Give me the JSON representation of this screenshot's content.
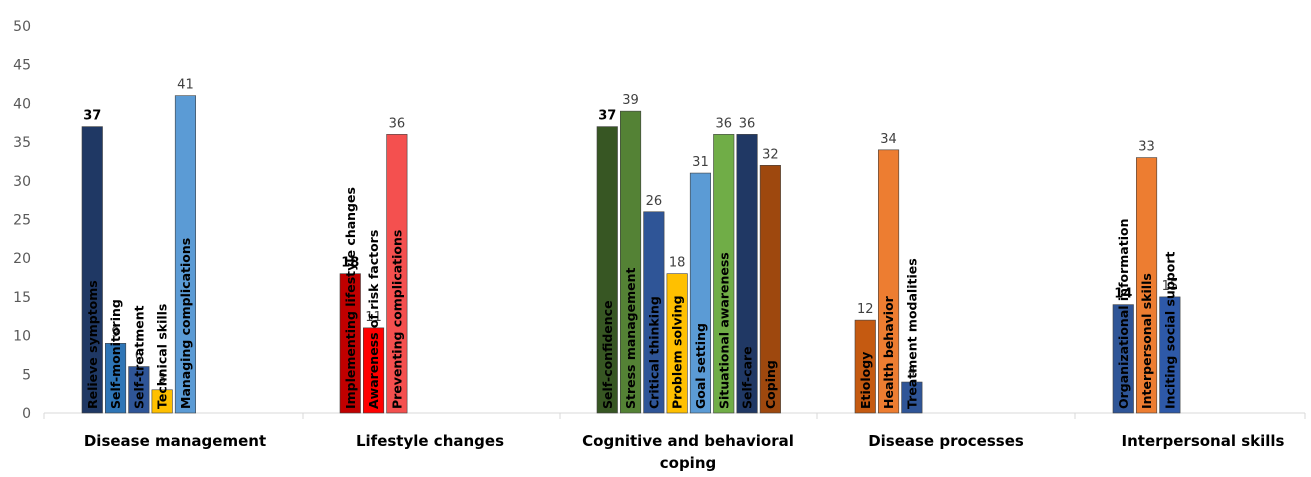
{
  "chart_data": {
    "type": "bar",
    "ylim": [
      0,
      50
    ],
    "yticks": [
      0,
      5,
      10,
      15,
      20,
      25,
      30,
      35,
      40,
      45,
      50
    ],
    "grid": false,
    "groups": [
      {
        "name": "Disease management",
        "bars": [
          {
            "label": "Relieve symptoms",
            "value": 37,
            "color": "#1f3864",
            "bold_value": true
          },
          {
            "label": "Self-monitoring",
            "value": 9,
            "color": "#2e75b6",
            "bold_value": false
          },
          {
            "label": "Self-treatment",
            "value": 6,
            "color": "#2f5597",
            "bold_value": false
          },
          {
            "label": "Technical skills",
            "value": 3,
            "color": "#ffc000",
            "bold_value": false
          },
          {
            "label": "Managing complications",
            "value": 41,
            "color": "#5b9bd5",
            "bold_value": false
          }
        ]
      },
      {
        "name": "Lifestyle changes",
        "bars": [
          {
            "label": "Implementing lifestyle changes",
            "value": 18,
            "color": "#c00000",
            "bold_value": true
          },
          {
            "label": "Awareness of risk factors",
            "value": 11,
            "color": "#ff0000",
            "bold_value": false
          },
          {
            "label": "Preventing complications",
            "value": 36,
            "color": "#f4504f",
            "bold_value": false
          }
        ]
      },
      {
        "name": "Cognitive and behavioral coping",
        "bars": [
          {
            "label": "Self-confidence",
            "value": 37,
            "color": "#375623",
            "bold_value": true
          },
          {
            "label": "Stress management",
            "value": 39,
            "color": "#548235",
            "bold_value": false
          },
          {
            "label": "Critical thinking",
            "value": 26,
            "color": "#2f5597",
            "bold_value": false
          },
          {
            "label": "Problem solving",
            "value": 18,
            "color": "#ffc000",
            "bold_value": false
          },
          {
            "label": "Goal setting",
            "value": 31,
            "color": "#5b9bd5",
            "bold_value": false
          },
          {
            "label": "Situational awareness",
            "value": 36,
            "color": "#70ad47",
            "bold_value": false
          },
          {
            "label": "Self-care",
            "value": 36,
            "color": "#203864",
            "bold_value": false
          },
          {
            "label": "Coping",
            "value": 32,
            "color": "#9e480e",
            "bold_value": false
          }
        ]
      },
      {
        "name": "Disease processes",
        "bars": [
          {
            "label": "Etiology",
            "value": 12,
            "color": "#c55a11",
            "bold_value": false
          },
          {
            "label": "Health behavior",
            "value": 34,
            "color": "#ed7d31",
            "bold_value": false
          },
          {
            "label": "Treatment modalities",
            "value": 4,
            "color": "#2f5597",
            "bold_value": false
          }
        ]
      },
      {
        "name": "Interpersonal skills",
        "bars": [
          {
            "label": "Organizational information",
            "value": 14,
            "color": "#2f5597",
            "bold_value": true
          },
          {
            "label": "Interpersonal skills",
            "value": 33,
            "color": "#ed7d31",
            "bold_value": false
          },
          {
            "label": "Inciting social support",
            "value": 15,
            "color": "#2e59a8",
            "bold_value": false
          }
        ]
      }
    ]
  }
}
